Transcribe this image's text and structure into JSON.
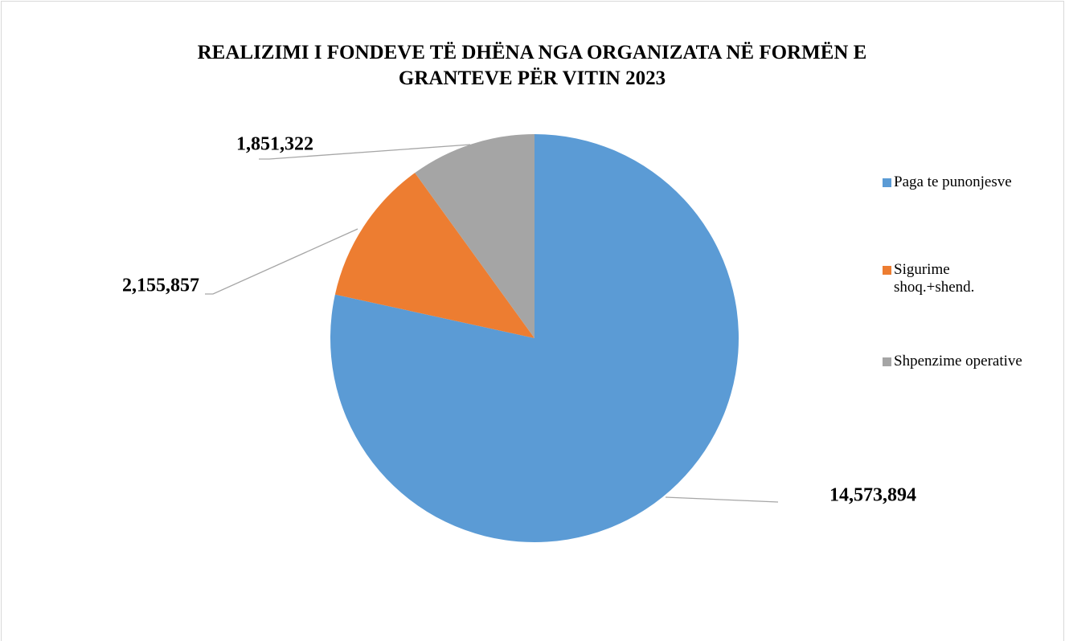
{
  "chart_data": {
    "type": "pie",
    "title": "REALIZIMI I FONDEVE TË DHËNA NGA ORGANIZATA NË FORMËN E GRANTEVE PËR VITIN 2023",
    "categories": [
      "Paga te punonjesve",
      "Sigurime shoq.+shend.",
      "Shpenzime operative"
    ],
    "values": [
      14573894,
      2155857,
      1851322
    ],
    "value_labels": [
      "14,573,894",
      "2,155,857",
      "1,851,322"
    ],
    "colors": [
      "#5b9bd5",
      "#ed7d31",
      "#a5a5a5"
    ],
    "legend": "right"
  }
}
